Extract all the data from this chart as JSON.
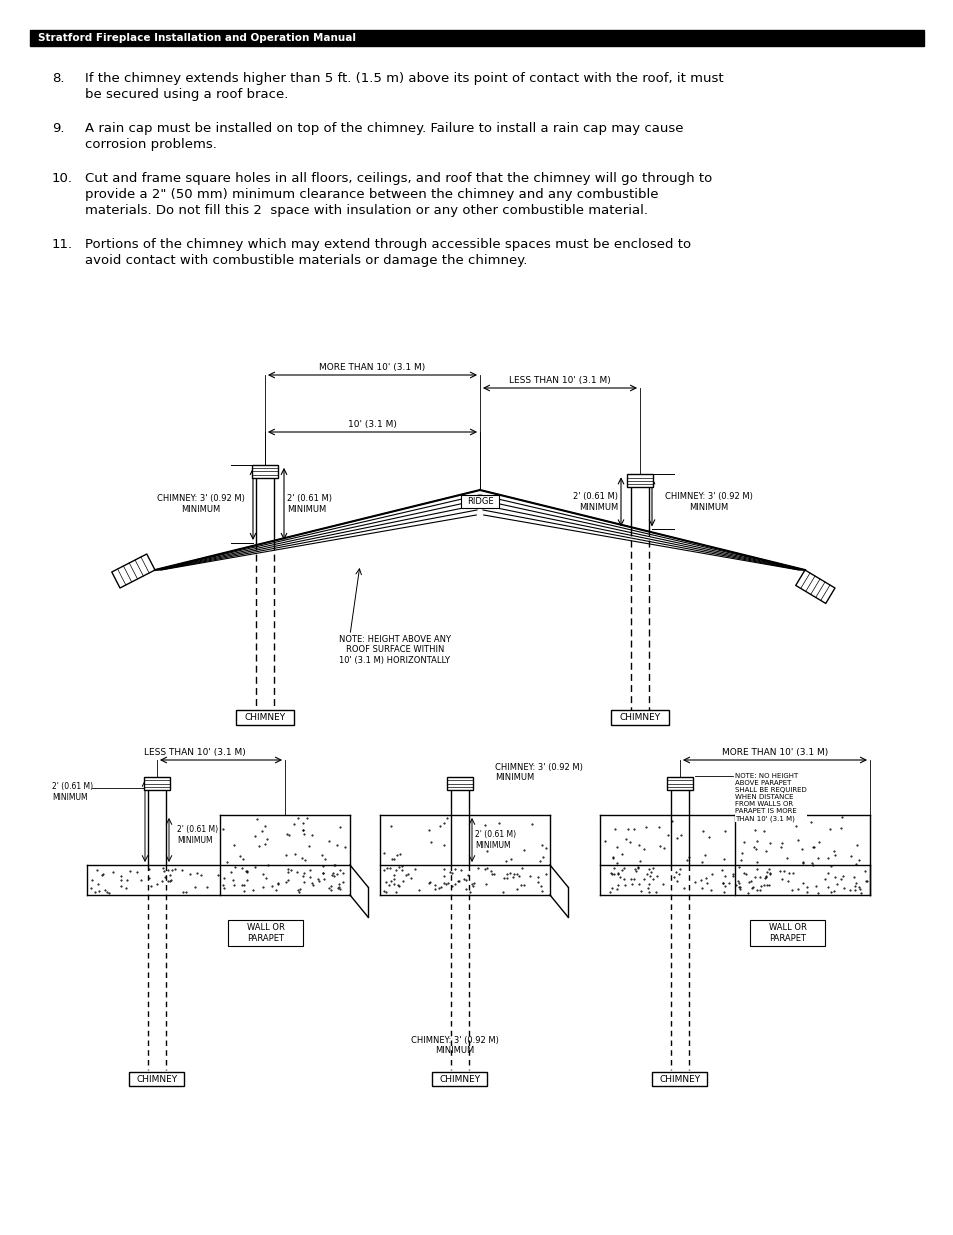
{
  "header_text": "Stratford Fireplace Installation and Operation Manual",
  "header_bg": "#000000",
  "header_fg": "#ffffff",
  "page_bg": "#ffffff",
  "text_color": "#000000"
}
